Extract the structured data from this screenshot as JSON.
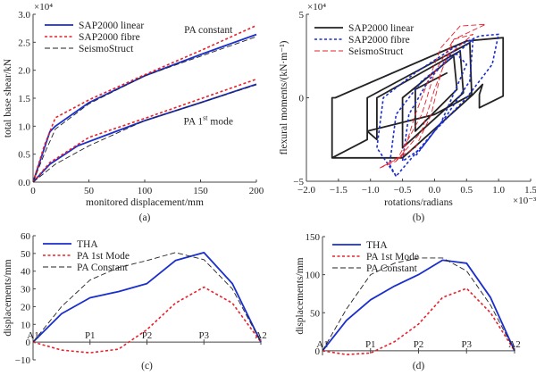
{
  "colors": {
    "blue": "#1a2ecc",
    "red": "#e8202a",
    "black": "#222222"
  },
  "chart_data": [
    {
      "id": "a",
      "type": "line",
      "panel_label": "(a)",
      "xlabel": "monitored displacement/mm",
      "ylabel": "total base shear/kN",
      "y_multiplier": "×10⁴",
      "xlim": [
        0,
        200
      ],
      "ylim": [
        0,
        30000
      ],
      "xticks": [
        0,
        50,
        100,
        150,
        200
      ],
      "xtick_labels": [
        "0",
        "50",
        "100",
        "150",
        "200"
      ],
      "yticks": [
        0,
        5000,
        10000,
        15000,
        20000,
        25000,
        30000
      ],
      "ytick_labels": [
        "0.0",
        "0.5",
        "1.0",
        "1.5",
        "2.0",
        "2.5",
        "3.0"
      ],
      "legend": "top-left",
      "annotations": [
        {
          "text": "PA constant",
          "x": 125,
          "y": 27300
        },
        {
          "text": "PA 1",
          "sup": "st",
          "rest": " mode",
          "x": 125,
          "y": 10900
        }
      ],
      "series": [
        {
          "name": "SAP2000 linear",
          "style": "solid",
          "color": "blue",
          "x": [
            0,
            10,
            15,
            20,
            50,
            100,
            150,
            200
          ],
          "y": [
            0,
            6000,
            9000,
            10000,
            14200,
            19000,
            22800,
            26400
          ]
        },
        {
          "name": "SAP2000 fibre",
          "style": "dotted",
          "color": "red",
          "x": [
            0,
            10,
            20,
            50,
            100,
            150,
            200
          ],
          "y": [
            0,
            6500,
            11500,
            14700,
            19200,
            23500,
            28000
          ]
        },
        {
          "name": "SeismoStruct",
          "style": "dashed",
          "color": "black",
          "x": [
            0,
            10,
            20,
            50,
            100,
            200
          ],
          "y": [
            0,
            5000,
            9500,
            14000,
            19000,
            26000
          ]
        },
        {
          "name": "",
          "legend": false,
          "style": "solid",
          "color": "blue",
          "x": [
            0,
            15,
            40,
            100,
            150,
            200
          ],
          "y": [
            0,
            3200,
            6500,
            11000,
            14200,
            17500
          ]
        },
        {
          "name": "",
          "legend": false,
          "style": "dotted",
          "color": "red",
          "x": [
            0,
            15,
            50,
            100,
            200
          ],
          "y": [
            0,
            3500,
            8000,
            11400,
            18400
          ]
        },
        {
          "name": "",
          "legend": false,
          "style": "dashed",
          "color": "black",
          "x": [
            0,
            20,
            50,
            100,
            200
          ],
          "y": [
            0,
            3200,
            6500,
            11000,
            17400
          ]
        }
      ]
    },
    {
      "id": "b",
      "type": "line",
      "panel_label": "(b)",
      "xlabel": "rotations/radians",
      "ylabel": "flexural moments/(kN·m⁻¹)",
      "y_multiplier": "×10⁴",
      "x_multiplier": "×10⁻³",
      "xlim": [
        -2.0,
        1.5
      ],
      "ylim": [
        -5,
        5
      ],
      "xticks": [
        -2.0,
        -1.5,
        -1.0,
        -0.5,
        0,
        0.5,
        1.0,
        1.5
      ],
      "xtick_labels": [
        "−2.0",
        "−1.5",
        "−1.0",
        "−0.5",
        "0.0",
        "0.5",
        "1.0",
        "1.5"
      ],
      "yticks": [
        -5,
        0,
        5
      ],
      "ytick_labels": [
        "−5",
        "0",
        "5"
      ],
      "legend": "top-left",
      "series": [
        {
          "name": "SAP2000 linear",
          "style": "solid",
          "color": "black",
          "x": [
            -1.6,
            -1.6,
            -1.55,
            0.5,
            1.07,
            1.07,
            0.7,
            0.7,
            0.75,
            0.6,
            -0.5,
            -1.6,
            -1.05,
            -1.05,
            0.55,
            0.58,
            0.0,
            -1.05,
            -0.9,
            -0.9,
            0.4,
            0.45,
            -0.5,
            -0.5,
            0.3,
            0.35,
            -0.3,
            -0.3,
            0.2
          ],
          "y": [
            -3.6,
            0,
            0,
            3.4,
            3.6,
            0.1,
            -0.6,
            0.2,
            0.8,
            0.2,
            -3.6,
            -3.6,
            -2.5,
            0,
            3.3,
            0.2,
            -1.0,
            -2.0,
            -2.5,
            0,
            2.8,
            0.3,
            -3.0,
            0,
            2.5,
            0.5,
            -2.0,
            0.5,
            1.5
          ]
        },
        {
          "name": "SAP2000 fibre",
          "style": "dotted",
          "color": "blue",
          "x": [
            -0.6,
            -0.9,
            -0.8,
            -0.3,
            0.3,
            0.7,
            1.0,
            0.9,
            0.5,
            0.0,
            -0.6,
            -0.7,
            -0.6,
            -0.2,
            0.3,
            0.6,
            0.55,
            0.2,
            -0.2,
            -0.5,
            -0.4,
            -0.1,
            0.3,
            0.5,
            0.1,
            -0.3
          ],
          "y": [
            -4.7,
            -3.0,
            0,
            1.5,
            3.0,
            3.7,
            3.8,
            2.0,
            0,
            -2.0,
            -4.7,
            -4.0,
            -1.0,
            1.0,
            2.5,
            3.5,
            1.0,
            -1.0,
            -3.0,
            -3.8,
            -1.0,
            1.0,
            2.8,
            2.0,
            -1.5,
            -3.5
          ]
        },
        {
          "name": "SeismoStruct",
          "style": "dashed",
          "color": "red",
          "x": [
            -0.85,
            -0.3,
            -0.05,
            0.1,
            0.3,
            0.8,
            0.4,
            0.1,
            -0.1,
            -0.3,
            -0.5,
            -0.85,
            -0.6,
            -0.2,
            0.0,
            0.2,
            0.6,
            0.3,
            0.0,
            -0.2,
            -0.6
          ],
          "y": [
            -4.2,
            -3.0,
            -1.0,
            1.5,
            3.5,
            4.4,
            4.3,
            3.0,
            1.0,
            -1.0,
            -3.5,
            -4.2,
            -3.8,
            -2.0,
            0.5,
            2.5,
            3.8,
            3.5,
            1.5,
            -1.0,
            -3.8
          ]
        }
      ]
    },
    {
      "id": "c",
      "type": "line",
      "panel_label": "(c)",
      "ylabel": "displacements/mm",
      "xlim": [
        0,
        4
      ],
      "ylim": [
        -10,
        60
      ],
      "categories": [
        "A1",
        "P1",
        "P2",
        "P3",
        "A2"
      ],
      "yticks": [
        -10,
        0,
        10,
        20,
        30,
        40,
        50,
        60
      ],
      "ytick_labels": [
        "−10",
        "0",
        "10",
        "20",
        "30",
        "40",
        "50",
        "60"
      ],
      "legend": "top-left",
      "x": [
        0,
        0.5,
        1,
        1.5,
        2,
        2.5,
        3,
        3.5,
        4
      ],
      "series": [
        {
          "name": "THA",
          "style": "solid",
          "color": "blue",
          "y": [
            0,
            16,
            25,
            28.5,
            33,
            46,
            50.5,
            33,
            0
          ]
        },
        {
          "name": "PA 1st Mode",
          "style": "dotted",
          "color": "red",
          "y": [
            0,
            -4.5,
            -6,
            -4,
            7,
            22,
            31,
            22,
            0
          ]
        },
        {
          "name": "PA Constant",
          "style": "dashed",
          "color": "black",
          "y": [
            0,
            20,
            35,
            42,
            46,
            50.5,
            46.5,
            30,
            0
          ]
        }
      ]
    },
    {
      "id": "d",
      "type": "line",
      "panel_label": "(d)",
      "ylabel": "displacements/mm",
      "xlim": [
        0,
        4
      ],
      "ylim": [
        -6,
        150
      ],
      "categories": [
        "A1",
        "P1",
        "P2",
        "P3",
        "A2"
      ],
      "yticks": [
        0,
        50,
        100,
        150
      ],
      "ytick_labels": [
        "0",
        "50",
        "100",
        "150"
      ],
      "legend": "top-left",
      "x": [
        0,
        0.5,
        1,
        1.5,
        2,
        2.5,
        3,
        3.5,
        4
      ],
      "series": [
        {
          "name": "THA",
          "style": "solid",
          "color": "blue",
          "y": [
            0,
            40,
            67,
            85,
            100,
            119,
            115,
            70,
            0
          ]
        },
        {
          "name": "PA 1st Mode",
          "style": "dotted",
          "color": "red",
          "y": [
            0,
            -5,
            -3,
            12,
            35,
            70,
            82,
            50,
            0
          ]
        },
        {
          "name": "PA Constant",
          "style": "dashed",
          "color": "black",
          "y": [
            0,
            55,
            100,
            115,
            122,
            122,
            105,
            60,
            0
          ]
        }
      ]
    }
  ]
}
